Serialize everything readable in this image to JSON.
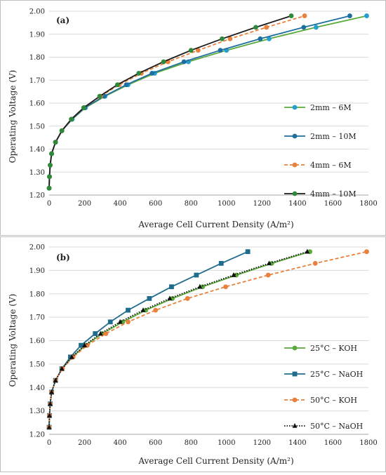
{
  "chart_data": [
    {
      "panel_label": "(a)",
      "type": "line",
      "xlabel": "Average Cell Current Density  (A/m²)",
      "ylabel": "Operating Voltage (V)",
      "xlim": [
        0,
        1800
      ],
      "ylim": [
        1.2,
        2.0
      ],
      "x_ticks": [
        "0",
        "200",
        "400",
        "600",
        "800",
        "1000",
        "1200",
        "1400",
        "1600",
        "1800"
      ],
      "y_ticks": [
        "1.20",
        "1.30",
        "1.40",
        "1.50",
        "1.60",
        "1.70",
        "1.80",
        "1.90",
        "2.00"
      ],
      "grid": true,
      "legend_position": "right",
      "series": [
        {
          "name": "2mm – 6M",
          "color": "#5aaa3a",
          "marker_color": "#23a0cf",
          "marker": "circle",
          "dash": "solid",
          "points": [
            [
              0,
              1.23
            ],
            [
              2,
              1.28
            ],
            [
              6,
              1.33
            ],
            [
              14,
              1.38
            ],
            [
              36,
              1.43
            ],
            [
              72,
              1.48
            ],
            [
              130,
              1.53
            ],
            [
              205,
              1.58
            ],
            [
              315,
              1.63
            ],
            [
              445,
              1.68
            ],
            [
              595,
              1.73
            ],
            [
              785,
              1.78
            ],
            [
              1000,
              1.83
            ],
            [
              1240,
              1.88
            ],
            [
              1505,
              1.93
            ],
            [
              1790,
              1.98
            ]
          ]
        },
        {
          "name": "2mm – 10M",
          "color": "#1f6ea0",
          "marker_color": "#1f6ea0",
          "marker": "circle",
          "dash": "solid",
          "points": [
            [
              0,
              1.23
            ],
            [
              2,
              1.28
            ],
            [
              6,
              1.33
            ],
            [
              14,
              1.38
            ],
            [
              36,
              1.43
            ],
            [
              72,
              1.48
            ],
            [
              128,
              1.53
            ],
            [
              200,
              1.58
            ],
            [
              310,
              1.63
            ],
            [
              435,
              1.68
            ],
            [
              580,
              1.73
            ],
            [
              760,
              1.78
            ],
            [
              965,
              1.83
            ],
            [
              1190,
              1.88
            ],
            [
              1435,
              1.93
            ],
            [
              1695,
              1.98
            ]
          ]
        },
        {
          "name": "4mm – 6M",
          "color": "#e9803b",
          "marker_color": "#e9803b",
          "marker": "circle",
          "dash": "dashed",
          "points": [
            [
              0,
              1.23
            ],
            [
              2,
              1.28
            ],
            [
              6,
              1.33
            ],
            [
              14,
              1.38
            ],
            [
              36,
              1.43
            ],
            [
              72,
              1.48
            ],
            [
              125,
              1.53
            ],
            [
              195,
              1.58
            ],
            [
              290,
              1.63
            ],
            [
              395,
              1.68
            ],
            [
              520,
              1.73
            ],
            [
              670,
              1.78
            ],
            [
              840,
              1.83
            ],
            [
              1020,
              1.88
            ],
            [
              1225,
              1.93
            ],
            [
              1440,
              1.98
            ]
          ]
        },
        {
          "name": "4mm – 10M",
          "color": "#1c1c1c",
          "marker_color": "#2e8a3a",
          "marker": "circle",
          "dash": "solid",
          "points": [
            [
              0,
              1.23
            ],
            [
              2,
              1.28
            ],
            [
              6,
              1.33
            ],
            [
              14,
              1.38
            ],
            [
              36,
              1.43
            ],
            [
              72,
              1.48
            ],
            [
              125,
              1.53
            ],
            [
              195,
              1.58
            ],
            [
              285,
              1.63
            ],
            [
              385,
              1.68
            ],
            [
              505,
              1.73
            ],
            [
              645,
              1.78
            ],
            [
              800,
              1.83
            ],
            [
              975,
              1.88
            ],
            [
              1165,
              1.93
            ],
            [
              1365,
              1.98
            ]
          ]
        }
      ]
    },
    {
      "panel_label": "(b)",
      "type": "line",
      "xlabel": "Average Cell Current Density  (A/m²)",
      "ylabel": "Operating Voltage (V)",
      "xlim": [
        0,
        1800
      ],
      "ylim": [
        1.2,
        2.0
      ],
      "x_ticks": [
        "0",
        "200",
        "400",
        "600",
        "800",
        "1000",
        "1200",
        "1400",
        "1600",
        "1800"
      ],
      "y_ticks": [
        "1.20",
        "1.30",
        "1.40",
        "1.50",
        "1.60",
        "1.70",
        "1.80",
        "1.90",
        "2.00"
      ],
      "grid": true,
      "legend_position": "right",
      "series": [
        {
          "name": "25°C – KOH",
          "color": "#5aaa3a",
          "marker_color": "#5aaa3a",
          "marker": "circle",
          "dash": "solid",
          "points": [
            [
              0,
              1.23
            ],
            [
              2,
              1.28
            ],
            [
              6,
              1.33
            ],
            [
              14,
              1.38
            ],
            [
              36,
              1.43
            ],
            [
              72,
              1.48
            ],
            [
              130,
              1.53
            ],
            [
              205,
              1.58
            ],
            [
              300,
              1.63
            ],
            [
              415,
              1.68
            ],
            [
              545,
              1.73
            ],
            [
              695,
              1.78
            ],
            [
              865,
              1.83
            ],
            [
              1055,
              1.88
            ],
            [
              1255,
              1.93
            ],
            [
              1470,
              1.98
            ]
          ]
        },
        {
          "name": "25°C – NaOH",
          "color": "#1f6c8c",
          "marker_color": "#1f6c8c",
          "marker": "square",
          "dash": "solid",
          "points": [
            [
              0,
              1.23
            ],
            [
              2,
              1.28
            ],
            [
              6,
              1.33
            ],
            [
              14,
              1.38
            ],
            [
              36,
              1.43
            ],
            [
              72,
              1.48
            ],
            [
              120,
              1.53
            ],
            [
              180,
              1.58
            ],
            [
              260,
              1.63
            ],
            [
              345,
              1.68
            ],
            [
              445,
              1.73
            ],
            [
              565,
              1.78
            ],
            [
              690,
              1.83
            ],
            [
              830,
              1.88
            ],
            [
              970,
              1.93
            ],
            [
              1120,
              1.98
            ]
          ]
        },
        {
          "name": "50°C – KOH",
          "color": "#e9803b",
          "marker_color": "#e9803b",
          "marker": "circle",
          "dash": "dashed",
          "points": [
            [
              0,
              1.23
            ],
            [
              2,
              1.28
            ],
            [
              6,
              1.33
            ],
            [
              14,
              1.38
            ],
            [
              36,
              1.43
            ],
            [
              75,
              1.48
            ],
            [
              135,
              1.53
            ],
            [
              215,
              1.58
            ],
            [
              320,
              1.63
            ],
            [
              445,
              1.68
            ],
            [
              600,
              1.73
            ],
            [
              780,
              1.78
            ],
            [
              995,
              1.83
            ],
            [
              1235,
              1.88
            ],
            [
              1500,
              1.93
            ],
            [
              1790,
              1.98
            ]
          ]
        },
        {
          "name": "50°C – NaOH",
          "color": "#111111",
          "marker_color": "#111111",
          "marker": "triangle",
          "dash": "dotted",
          "points": [
            [
              0,
              1.23
            ],
            [
              2,
              1.28
            ],
            [
              6,
              1.33
            ],
            [
              14,
              1.38
            ],
            [
              36,
              1.43
            ],
            [
              72,
              1.48
            ],
            [
              128,
              1.53
            ],
            [
              200,
              1.58
            ],
            [
              290,
              1.63
            ],
            [
              400,
              1.68
            ],
            [
              530,
              1.73
            ],
            [
              680,
              1.78
            ],
            [
              850,
              1.83
            ],
            [
              1040,
              1.88
            ],
            [
              1240,
              1.93
            ],
            [
              1455,
              1.98
            ]
          ]
        }
      ]
    }
  ]
}
